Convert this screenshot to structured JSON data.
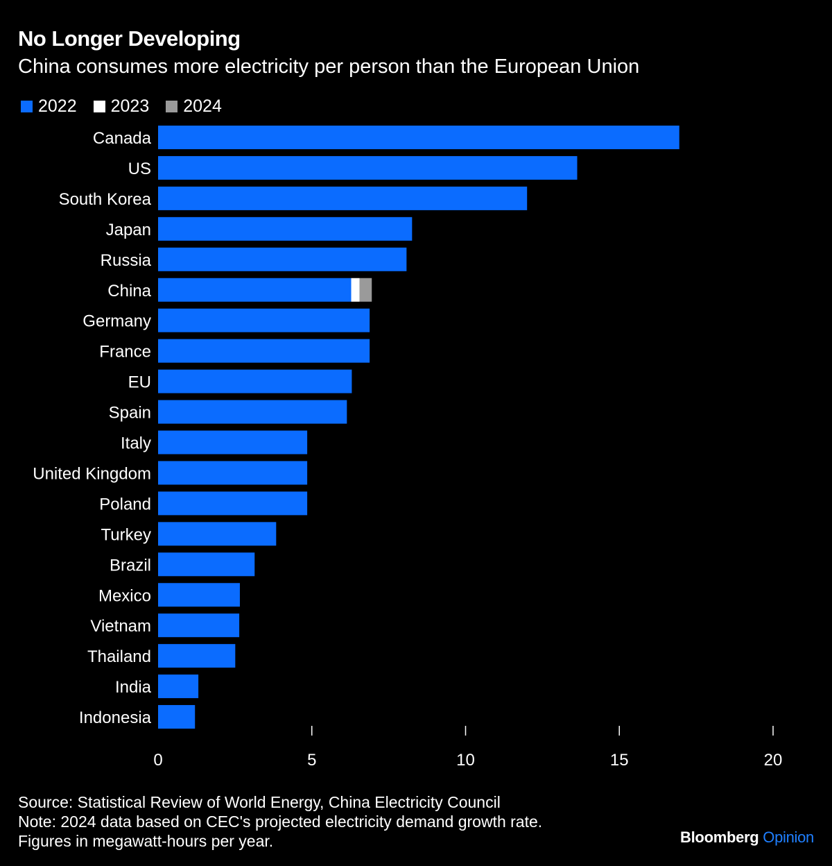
{
  "chart_data": {
    "type": "bar",
    "orientation": "horizontal",
    "stacked": true,
    "title": "No Longer Developing",
    "subtitle": "China consumes more electricity per person than the European Union",
    "categories": [
      "Canada",
      "US",
      "South Korea",
      "Japan",
      "Russia",
      "China",
      "Germany",
      "France",
      "EU",
      "Spain",
      "Italy",
      "United Kingdom",
      "Poland",
      "Turkey",
      "Brazil",
      "Mexico",
      "Vietnam",
      "Thailand",
      "India",
      "Indonesia"
    ],
    "series": [
      {
        "name": "2022",
        "color": "#0b6cff",
        "values": [
          16.95,
          13.63,
          12.0,
          8.26,
          8.08,
          6.28,
          6.88,
          6.88,
          6.3,
          6.14,
          4.85,
          4.85,
          4.85,
          3.84,
          3.14,
          2.66,
          2.64,
          2.51,
          1.31,
          1.2
        ]
      },
      {
        "name": "2023",
        "color": "#ffffff",
        "values": [
          null,
          null,
          null,
          null,
          null,
          0.27,
          null,
          null,
          null,
          null,
          null,
          null,
          null,
          null,
          null,
          null,
          null,
          null,
          null,
          null
        ]
      },
      {
        "name": "2024",
        "color": "#9a9a9a",
        "values": [
          null,
          null,
          null,
          null,
          null,
          0.4,
          null,
          null,
          null,
          null,
          null,
          null,
          null,
          null,
          null,
          null,
          null,
          null,
          null,
          null
        ]
      }
    ],
    "xlim": [
      0,
      20
    ],
    "xticks": [
      0,
      5,
      10,
      15,
      20
    ],
    "grid": false,
    "legend": "top-left"
  },
  "footer": {
    "source": "Source: Statistical Review of World Energy, China Electricity Council",
    "note": "Note: 2024 data based on CEC's projected electricity demand growth rate.",
    "units": "Figures in megawatt-hours per year."
  },
  "brand": {
    "name": "Bloomberg",
    "section": "Opinion",
    "accent": "#1f7fff"
  }
}
